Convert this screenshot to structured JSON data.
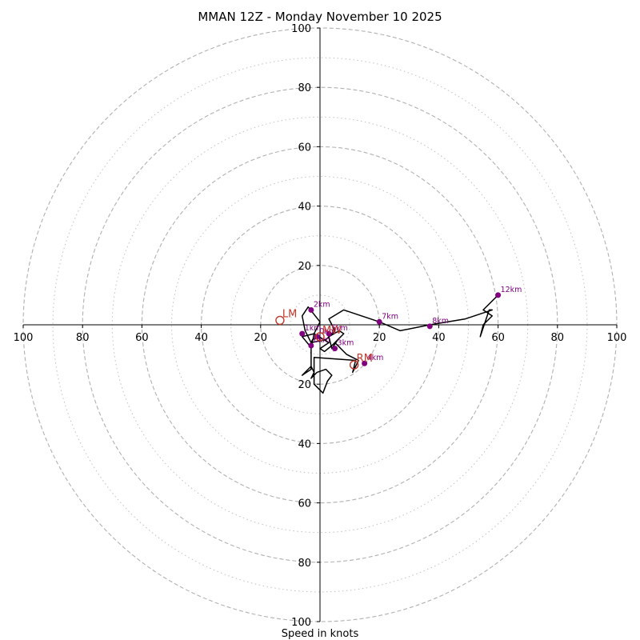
{
  "chart_data": {
    "type": "hodograph",
    "title": "MMAN 12Z - Monday November 10 2025",
    "xlabel": "Speed in knots",
    "range": [
      -100,
      100
    ],
    "ring_major": [
      20,
      40,
      60,
      80,
      100
    ],
    "ring_minor": [
      10,
      30,
      50,
      70,
      90
    ],
    "x_ticks": [
      {
        "value": -100,
        "label": "100"
      },
      {
        "value": -80,
        "label": "80"
      },
      {
        "value": -60,
        "label": "60"
      },
      {
        "value": -40,
        "label": "40"
      },
      {
        "value": -20,
        "label": "20"
      },
      {
        "value": 20,
        "label": "20"
      },
      {
        "value": 40,
        "label": "40"
      },
      {
        "value": 60,
        "label": "60"
      },
      {
        "value": 80,
        "label": "80"
      },
      {
        "value": 100,
        "label": "100"
      }
    ],
    "y_ticks": [
      {
        "value": 100,
        "label": "100"
      },
      {
        "value": 80,
        "label": "80"
      },
      {
        "value": 60,
        "label": "60"
      },
      {
        "value": 40,
        "label": "40"
      },
      {
        "value": 20,
        "label": "20"
      },
      {
        "value": -20,
        "label": "20"
      },
      {
        "value": -40,
        "label": "40"
      },
      {
        "value": -60,
        "label": "60"
      },
      {
        "value": -80,
        "label": "80"
      },
      {
        "value": -100,
        "label": "100"
      }
    ],
    "colors": {
      "trace": "#000000",
      "markers": "#800080",
      "motion": "#c0392b",
      "grid": "#b0b0b0",
      "axis": "#000000"
    },
    "trace": {
      "u": [
        -1,
        -2.5,
        -3.5,
        -6,
        -2,
        3,
        0,
        1.5,
        4,
        6,
        4,
        3,
        6.5,
        8,
        5,
        9,
        11,
        13,
        11,
        12,
        -2,
        -2,
        1,
        2.5,
        4,
        2,
        -1,
        -3,
        -2,
        -3,
        -6,
        -3,
        -3,
        -2,
        0,
        -4,
        -6,
        -5,
        -3,
        2,
        5,
        3,
        8,
        20,
        27,
        37,
        49,
        58,
        57,
        54,
        55,
        58,
        55,
        60
      ],
      "v": [
        -4,
        -5,
        -7,
        -4,
        -3,
        -6,
        -8,
        -9,
        -7,
        -5,
        -8,
        -4,
        -2,
        -3,
        -6,
        -10,
        -11,
        -12,
        -16,
        -12,
        -11,
        -20,
        -23,
        -19,
        -17,
        -15,
        -16,
        -18,
        -16,
        -14,
        -17,
        -15,
        -8,
        -3,
        1,
        6,
        3,
        -2,
        -6,
        -5,
        -2,
        2,
        5,
        1,
        -2,
        0,
        2,
        5,
        5,
        -4,
        0,
        3,
        5,
        10
      ]
    },
    "height_markers": [
      {
        "label": "0km",
        "u": -1,
        "v": -4
      },
      {
        "label": "1km",
        "u": -6,
        "v": -3
      },
      {
        "label": "2km",
        "u": -3,
        "v": 5
      },
      {
        "label": "3km",
        "u": 5,
        "v": -8
      },
      {
        "label": "4km",
        "u": 15,
        "v": -13
      },
      {
        "label": "5km",
        "u": 3,
        "v": -3
      },
      {
        "label": "6km",
        "u": -3,
        "v": -7
      },
      {
        "label": "7km",
        "u": 20,
        "v": 1
      },
      {
        "label": "8km",
        "u": 37,
        "v": -0.5
      },
      {
        "label": "12km",
        "u": 60,
        "v": 10
      }
    ],
    "storm_motion": [
      {
        "label": "LM",
        "u": -13.5,
        "v": 1.5
      },
      {
        "label": "MW",
        "u": 0,
        "v": -4
      },
      {
        "label": "RM",
        "u": 11.5,
        "v": -13.5
      }
    ]
  }
}
